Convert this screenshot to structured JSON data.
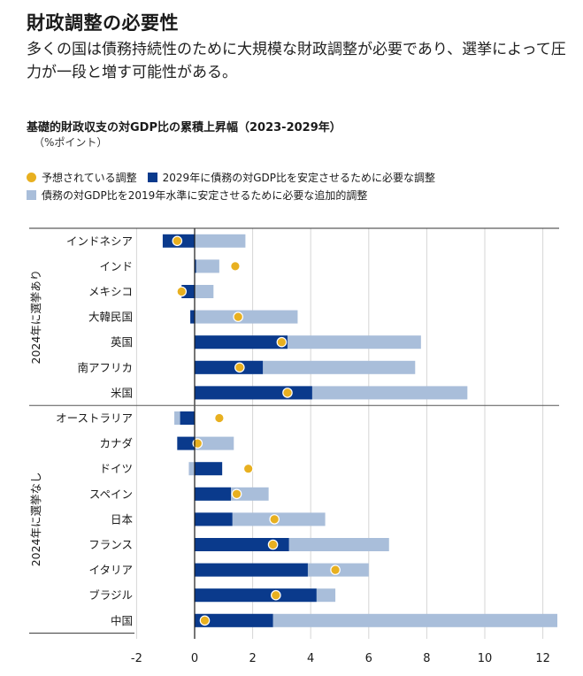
{
  "title": "財政調整の必要性",
  "subtitle": "多くの国は債務持続性のために大規模な財政調整が必要であり、選挙によって圧力が一段と増す可能性がある。",
  "chart_data": {
    "type": "bar",
    "title": "基礎的財政収支の対GDP比の累積上昇幅（2023-2029年）",
    "unit": "（%ポイント）",
    "legend": [
      {
        "key": "expected",
        "label": "予想されている調整",
        "color": "#E8B020",
        "marker": "dot"
      },
      {
        "key": "needed",
        "label": "2029年に債務の対GDP比を安定させるために必要な調整",
        "color": "#0A3A8C",
        "marker": "square"
      },
      {
        "key": "additional",
        "label": "債務の対GDP比を2019年水準に安定させるために必要な追加的調整",
        "color": "#A9BEDA",
        "marker": "square"
      }
    ],
    "groups": [
      {
        "label": "2024年に選挙あり",
        "countries": [
          {
            "name": "インドネシア",
            "needed": -1.1,
            "total": 1.75,
            "expected": -0.6
          },
          {
            "name": "インド",
            "needed": 0.05,
            "total": 0.85,
            "expected": 1.4
          },
          {
            "name": "メキシコ",
            "needed": -0.45,
            "total": 0.65,
            "expected": -0.45
          },
          {
            "name": "大韓民国",
            "needed": -0.15,
            "total": 3.55,
            "expected": 1.5
          },
          {
            "name": "英国",
            "needed": 3.2,
            "total": 7.8,
            "expected": 3.0
          },
          {
            "name": "南アフリカ",
            "needed": 2.35,
            "total": 7.6,
            "expected": 1.55
          },
          {
            "name": "米国",
            "needed": 4.05,
            "total": 9.4,
            "expected": 3.2
          }
        ]
      },
      {
        "label": "2024年に選挙なし",
        "countries": [
          {
            "name": "オーストラリア",
            "needed": -0.5,
            "total": -0.7,
            "expected": 0.85
          },
          {
            "name": "カナダ",
            "needed": -0.6,
            "total": 1.35,
            "expected": 0.1
          },
          {
            "name": "ドイツ",
            "needed": 0.95,
            "total": -0.2,
            "expected": 1.85
          },
          {
            "name": "スペイン",
            "needed": 1.25,
            "total": 2.55,
            "expected": 1.45
          },
          {
            "name": "日本",
            "needed": 1.3,
            "total": 4.5,
            "expected": 2.75
          },
          {
            "name": "フランス",
            "needed": 3.25,
            "total": 6.7,
            "expected": 2.7
          },
          {
            "name": "イタリア",
            "needed": 3.9,
            "total": 6.0,
            "expected": 4.85
          },
          {
            "name": "ブラジル",
            "needed": 4.2,
            "total": 4.85,
            "expected": 2.8
          },
          {
            "name": "中国",
            "needed": 2.7,
            "total": 12.5,
            "expected": 0.35
          }
        ]
      }
    ],
    "x_ticks": [
      -2,
      0,
      2,
      4,
      6,
      8,
      10,
      12
    ],
    "xlim": [
      -2,
      12.5
    ],
    "grid": true
  }
}
